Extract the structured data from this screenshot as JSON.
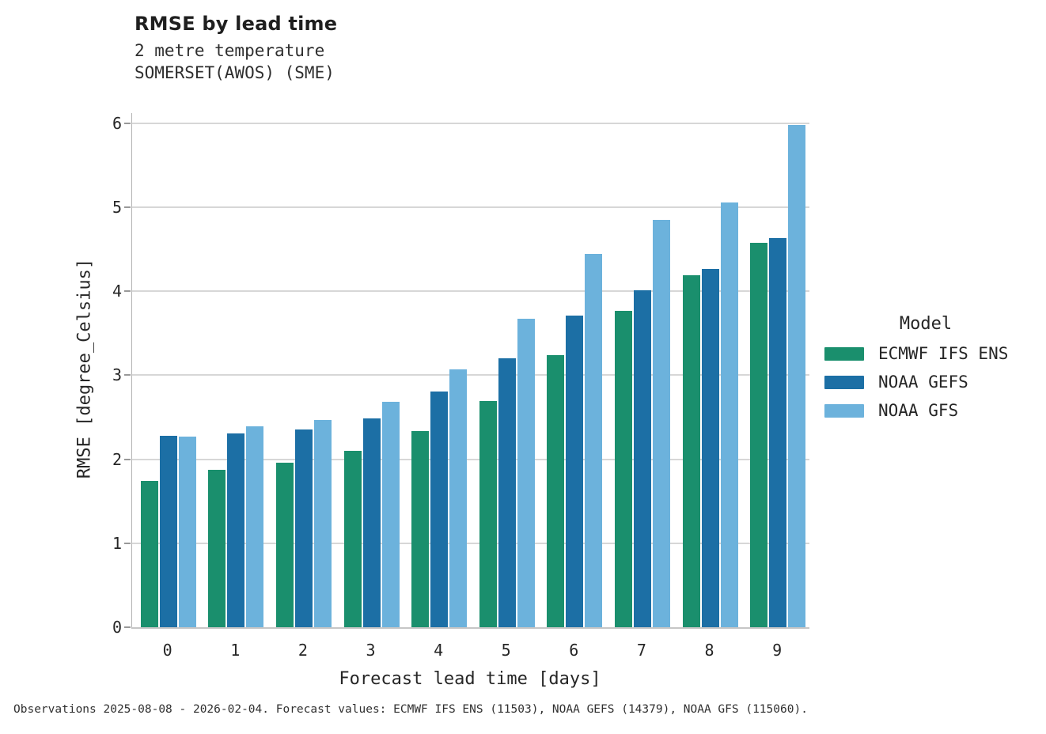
{
  "header": {
    "title": "RMSE by lead time",
    "subtitle1": "2 metre temperature",
    "subtitle2": "SOMERSET(AWOS) (SME)"
  },
  "axes": {
    "ylabel": "RMSE [degree_Celsius]",
    "xlabel": "Forecast lead time [days]"
  },
  "legend": {
    "title": "Model",
    "entries": [
      {
        "label": "ECMWF IFS ENS",
        "color": "#1A8F6D"
      },
      {
        "label": "NOAA GEFS",
        "color": "#1C6FA5"
      },
      {
        "label": "NOAA GFS",
        "color": "#6CB2DC"
      }
    ]
  },
  "footer": {
    "text": "Observations 2025-08-08 - 2026-02-04. Forecast values: ECMWF IFS ENS (11503), NOAA GEFS (14379), NOAA GFS (115060)."
  },
  "chart_data": {
    "type": "bar",
    "title": "RMSE by lead time",
    "subtitle": [
      "2 metre temperature",
      "SOMERSET(AWOS) (SME)"
    ],
    "xlabel": "Forecast lead time [days]",
    "ylabel": "RMSE [degree_Celsius]",
    "categories": [
      "0",
      "1",
      "2",
      "3",
      "4",
      "5",
      "6",
      "7",
      "8",
      "9"
    ],
    "series": [
      {
        "name": "ECMWF IFS ENS",
        "color": "#1A8F6D",
        "values": [
          1.74,
          1.87,
          1.96,
          2.1,
          2.34,
          2.69,
          3.24,
          3.77,
          4.19,
          4.58
        ]
      },
      {
        "name": "NOAA GEFS",
        "color": "#1C6FA5",
        "values": [
          2.28,
          2.31,
          2.35,
          2.49,
          2.81,
          3.2,
          3.71,
          4.01,
          4.27,
          4.63
        ]
      },
      {
        "name": "NOAA GFS",
        "color": "#6CB2DC",
        "values": [
          2.27,
          2.39,
          2.47,
          2.68,
          3.07,
          3.67,
          4.44,
          4.85,
          5.06,
          5.98
        ]
      }
    ],
    "ylim": [
      0,
      6.12
    ],
    "yticks": [
      0,
      1,
      2,
      3,
      4,
      5,
      6
    ],
    "grid": true,
    "legend_title": "Model",
    "legend_position": "right-of-plot",
    "colors": {
      "gridline": "#d7d7d7",
      "spine": "#b3b3b3",
      "text": "#262626"
    }
  }
}
